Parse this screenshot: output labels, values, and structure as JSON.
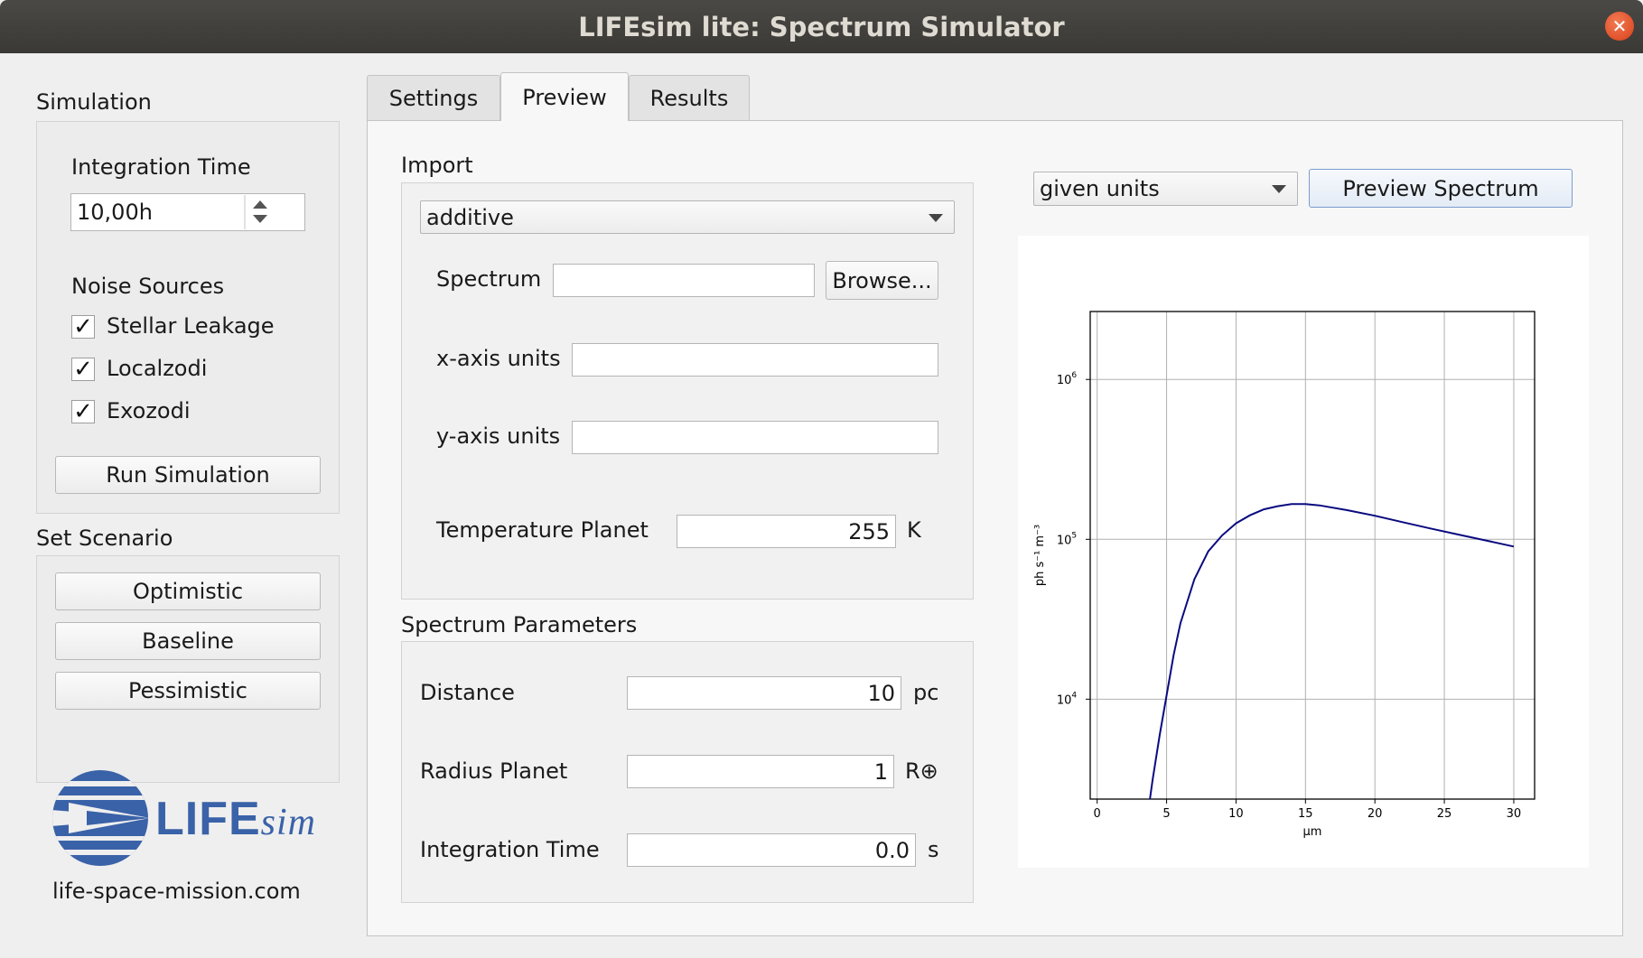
{
  "window": {
    "title": "LIFEsim lite: Spectrum Simulator",
    "close_glyph": "✕"
  },
  "simulation": {
    "heading": "Simulation",
    "integration_time_label": "Integration Time",
    "integration_time_value": "10,00h",
    "noise_sources_label": "Noise Sources",
    "noise_sources": [
      {
        "label": "Stellar Leakage",
        "checked": true
      },
      {
        "label": "Localzodi",
        "checked": true
      },
      {
        "label": "Exozodi",
        "checked": true
      }
    ],
    "checkmark": "✓",
    "run_button": "Run Simulation"
  },
  "scenario": {
    "heading": "Set Scenario",
    "buttons": [
      "Optimistic",
      "Baseline",
      "Pessimistic"
    ]
  },
  "logo": {
    "text_main": "LIFE",
    "text_italic": "sim",
    "url": "life-space-mission.com",
    "color": "#3a62a8"
  },
  "tabs": [
    {
      "label": "Settings",
      "active": false
    },
    {
      "label": "Preview",
      "active": true
    },
    {
      "label": "Results",
      "active": false
    }
  ],
  "import": {
    "heading": "Import",
    "mode_value": "additive",
    "spectrum_label": "Spectrum",
    "spectrum_value": "",
    "browse_button": "Browse...",
    "x_units_label": "x-axis units",
    "x_units_value": "",
    "y_units_label": "y-axis units",
    "y_units_value": "",
    "temp_label": "Temperature Planet",
    "temp_value": "255",
    "temp_unit": "K"
  },
  "spectrum_params": {
    "heading": "Spectrum Parameters",
    "distance_label": "Distance",
    "distance_value": "10",
    "distance_unit": "pc",
    "radius_label": "Radius Planet",
    "radius_value": "1",
    "radius_unit": "R⊕",
    "integration_label": "Integration Time",
    "integration_value": "0.0",
    "integration_unit": "s"
  },
  "preview": {
    "units_value": "given units",
    "preview_button": "Preview Spectrum"
  },
  "chart_data": {
    "type": "line",
    "xlabel": "μm",
    "ylabel": "ph s⁻¹ m⁻³",
    "xlim": [
      -0.5,
      31.5
    ],
    "ylim_log10": [
      3.2,
      4.42
    ],
    "yscale": "log",
    "grid": true,
    "xticks": [
      0,
      5,
      10,
      15,
      20,
      25,
      30
    ],
    "yticks": [
      {
        "base": "10",
        "exp": "6",
        "log10": 4.25
      },
      {
        "base": "10",
        "exp": "5",
        "log10": 3.85
      },
      {
        "base": "10",
        "exp": "4",
        "log10": 3.45
      }
    ],
    "series": [
      {
        "color": "#0a0a80",
        "x": [
          3.8,
          4.0,
          4.5,
          5.0,
          5.5,
          6.0,
          7.0,
          8.0,
          9.0,
          10.0,
          11.0,
          12.0,
          13.0,
          14.0,
          15.0,
          16.0,
          18.0,
          20.0,
          22.0,
          24.0,
          26.0,
          28.0,
          30.0
        ],
        "log10_y": [
          3.2,
          3.25,
          3.36,
          3.46,
          3.56,
          3.64,
          3.75,
          3.82,
          3.86,
          3.89,
          3.91,
          3.925,
          3.933,
          3.938,
          3.938,
          3.935,
          3.923,
          3.909,
          3.893,
          3.877,
          3.862,
          3.847,
          3.832
        ]
      }
    ]
  }
}
